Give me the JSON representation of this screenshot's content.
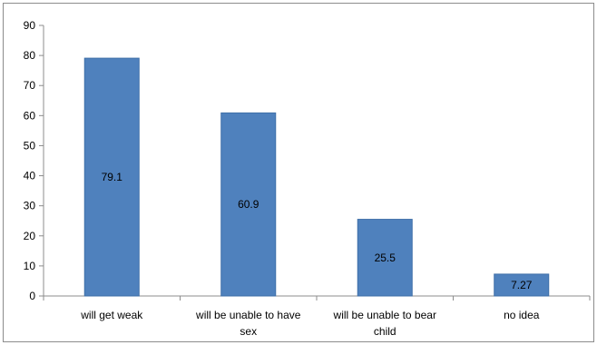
{
  "chart_data": {
    "type": "bar",
    "categories": [
      [
        "will get weak"
      ],
      [
        "will be unable to have",
        "sex"
      ],
      [
        "will be unable to bear",
        "child"
      ],
      [
        "no idea"
      ]
    ],
    "values": [
      79.1,
      60.9,
      25.5,
      7.27
    ],
    "value_labels": [
      "79.1",
      "60.9",
      "25.5",
      "7.27"
    ],
    "ylim": [
      0,
      90
    ],
    "y_ticks": [
      0,
      10,
      20,
      30,
      40,
      50,
      60,
      70,
      80,
      90
    ],
    "grid": false,
    "legend": "none",
    "colors": {
      "bar": "#4f81bd",
      "bar_edge": "#3f6fa8",
      "axis": "#8c8c8c"
    }
  }
}
